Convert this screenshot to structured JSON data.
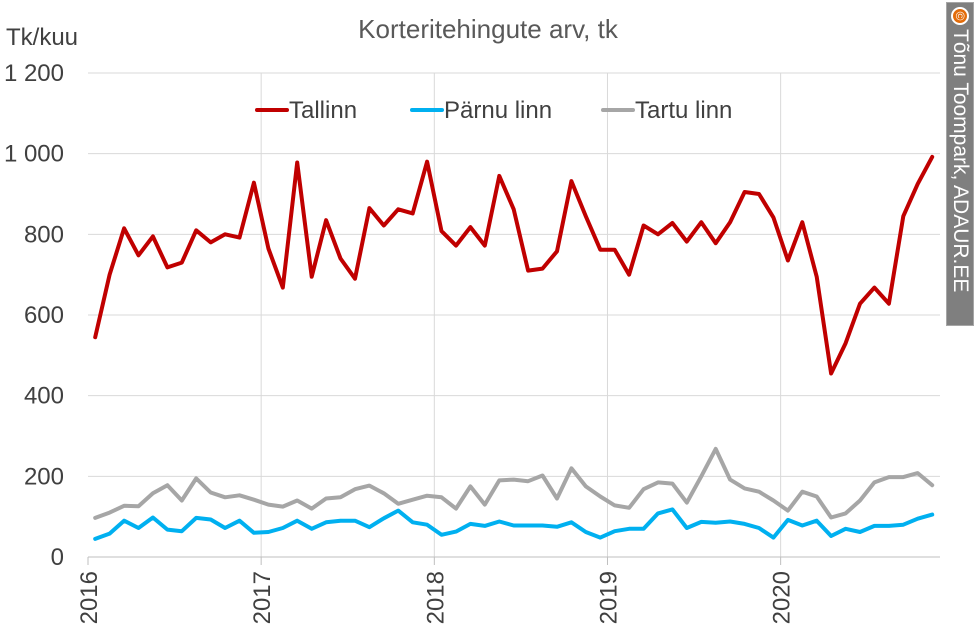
{
  "chart_data": {
    "type": "line",
    "title": "Korteritehingute arv, tk",
    "ylabel": "Tk/kuu",
    "xlabel": "",
    "ylim": [
      0,
      1200
    ],
    "yticks": [
      {
        "value": 0,
        "label": "0"
      },
      {
        "value": 200,
        "label": "200"
      },
      {
        "value": 400,
        "label": "400"
      },
      {
        "value": 600,
        "label": "600"
      },
      {
        "value": 800,
        "label": "800"
      },
      {
        "value": 1000,
        "label": "1 000"
      },
      {
        "value": 1200,
        "label": "1 200"
      }
    ],
    "x_start": "2016-01",
    "years": [
      "2016",
      "2017",
      "2018",
      "2019",
      "2020"
    ],
    "grid": true,
    "legend_position": "top",
    "series": [
      {
        "name": "Tallinn",
        "color": "#c00000",
        "values": [
          545,
          700,
          815,
          748,
          795,
          718,
          730,
          810,
          780,
          800,
          792,
          928,
          765,
          668,
          978,
          695,
          835,
          740,
          690,
          865,
          822,
          862,
          852,
          980,
          808,
          772,
          818,
          772,
          945,
          862,
          710,
          715,
          758,
          932,
          845,
          762,
          762,
          700,
          822,
          800,
          828,
          782,
          830,
          778,
          830,
          905,
          900,
          842,
          735,
          830,
          695,
          455,
          530,
          628,
          668,
          628,
          845,
          925,
          992
        ]
      },
      {
        "name": "Pärnu linn",
        "color": "#00b0f0",
        "values": [
          45,
          58,
          90,
          72,
          98,
          68,
          64,
          97,
          93,
          72,
          90,
          60,
          62,
          72,
          90,
          70,
          86,
          90,
          90,
          74,
          96,
          115,
          86,
          80,
          55,
          63,
          82,
          77,
          88,
          78,
          78,
          78,
          75,
          86,
          62,
          48,
          64,
          70,
          70,
          108,
          118,
          72,
          87,
          85,
          88,
          82,
          72,
          48,
          92,
          78,
          90,
          52,
          70,
          62,
          77,
          77,
          80,
          95,
          105
        ]
      },
      {
        "name": "Tartu linn",
        "color": "#a6a6a6",
        "values": [
          97,
          110,
          127,
          126,
          158,
          178,
          140,
          195,
          160,
          148,
          153,
          142,
          130,
          125,
          140,
          120,
          145,
          148,
          168,
          177,
          158,
          132,
          142,
          152,
          148,
          120,
          175,
          130,
          190,
          192,
          188,
          202,
          145,
          220,
          175,
          150,
          128,
          122,
          168,
          185,
          182,
          135,
          200,
          268,
          192,
          170,
          162,
          140,
          115,
          162,
          150,
          98,
          108,
          140,
          185,
          198,
          198,
          208,
          178
        ]
      }
    ]
  },
  "credit": {
    "icon": "copyright-icon",
    "symbol": "©",
    "text": "Tõnu Toompark, ADAUR.EE"
  }
}
